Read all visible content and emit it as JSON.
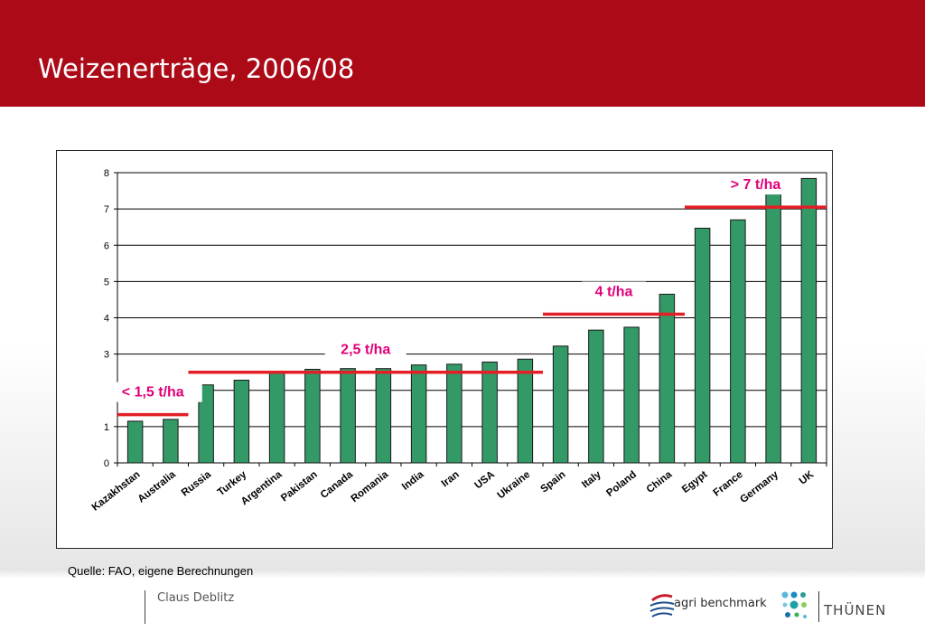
{
  "slide": {
    "title": "Weizenerträge, 2006/08",
    "source": "Quelle: FAO, eigene Berechnungen",
    "author": "Claus Deblitz",
    "logo_agri": "agri benchmark",
    "logo_thuenen": "THÜNEN"
  },
  "colors": {
    "header": "#ad0a18",
    "bar": "#339966",
    "threshold_line": "#e41e26",
    "threshold_label": "#e2007a"
  },
  "chart_data": {
    "type": "bar",
    "title": "",
    "xlabel": "",
    "ylabel": "",
    "ylim": [
      0,
      8
    ],
    "yticks": [
      "0",
      "1",
      "2",
      "3",
      "4",
      "5",
      "6",
      "7",
      "8"
    ],
    "grid": true,
    "categories": [
      "Kazakhstan",
      "Australia",
      "Russia",
      "Turkey",
      "Argentina",
      "Pakistan",
      "Canada",
      "Romania",
      "India",
      "Iran",
      "USA",
      "Ukraine",
      "Spain",
      "Italy",
      "Poland",
      "China",
      "Egypt",
      "France",
      "Germany",
      "UK"
    ],
    "values": [
      1.15,
      1.2,
      2.15,
      2.28,
      2.5,
      2.58,
      2.6,
      2.6,
      2.7,
      2.72,
      2.78,
      2.86,
      3.22,
      3.66,
      3.74,
      4.65,
      6.47,
      6.7,
      7.43,
      7.84
    ],
    "thresholds": [
      {
        "label": "< 1,5 t/ha",
        "value": 1.33,
        "from": "Kazakhstan",
        "to": "Australia"
      },
      {
        "label": "2,5 t/ha",
        "value": 2.5,
        "from": "Russia",
        "to": "Ukraine"
      },
      {
        "label": "4 t/ha",
        "value": 4.1,
        "from": "Spain",
        "to": "China"
      },
      {
        "label": "> 7 t/ha",
        "value": 7.05,
        "from": "Egypt",
        "to": "UK"
      }
    ]
  }
}
